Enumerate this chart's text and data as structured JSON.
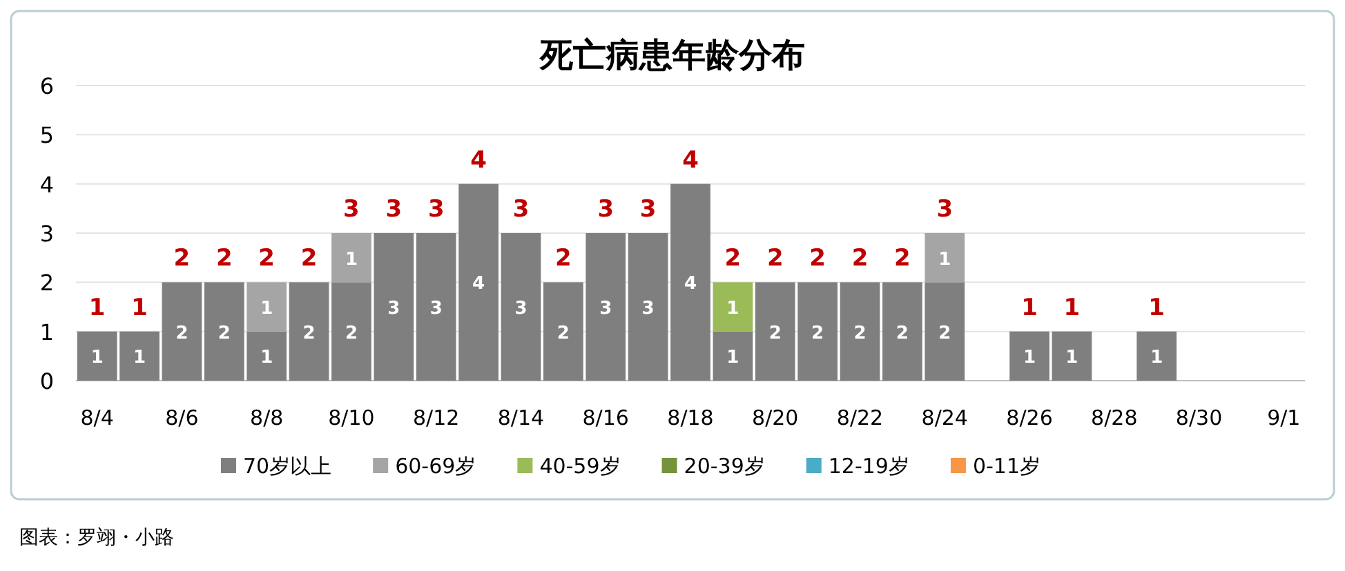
{
  "chart_data": {
    "type": "bar",
    "stacked": true,
    "title": "死亡病患年龄分布",
    "categories": [
      "8/4",
      null,
      "8/6",
      null,
      "8/8",
      null,
      "8/10",
      null,
      "8/12",
      null,
      "8/14",
      null,
      "8/16",
      null,
      "8/18",
      null,
      "8/20",
      null,
      "8/22",
      null,
      "8/24",
      null,
      "8/26",
      null,
      "8/28",
      null,
      "8/30",
      null,
      "9/1"
    ],
    "series": [
      {
        "name": "70岁以上",
        "color": "#7f7f7f",
        "values": [
          1,
          1,
          2,
          2,
          1,
          2,
          2,
          3,
          3,
          4,
          3,
          2,
          3,
          3,
          4,
          1,
          2,
          2,
          2,
          2,
          2,
          0,
          1,
          1,
          0,
          1,
          0,
          0,
          0
        ],
        "value_labels": [
          "1",
          "1",
          "2",
          "2",
          "1",
          "2",
          "2",
          "3",
          "3",
          "4",
          "3",
          "2",
          "3",
          "3",
          "4",
          "1",
          "2",
          "2",
          "2",
          "2",
          "2",
          null,
          "1",
          "1",
          null,
          "1",
          null,
          null,
          null
        ]
      },
      {
        "name": "60-69岁",
        "color": "#a5a5a5",
        "values": [
          0,
          0,
          0,
          0,
          1,
          0,
          1,
          0,
          0,
          0,
          0,
          0,
          0,
          0,
          0,
          0,
          0,
          0,
          0,
          0,
          1,
          0,
          0,
          0,
          0,
          0,
          0,
          0,
          0
        ],
        "value_labels": [
          null,
          null,
          null,
          null,
          "1",
          null,
          "1",
          null,
          null,
          null,
          null,
          null,
          null,
          null,
          null,
          null,
          null,
          null,
          null,
          null,
          "1",
          null,
          null,
          null,
          null,
          null,
          null,
          null,
          null
        ]
      },
      {
        "name": "40-59岁",
        "color": "#9bbb59",
        "values": [
          0,
          0,
          0,
          0,
          0,
          0,
          0,
          0,
          0,
          0,
          0,
          0,
          0,
          0,
          0,
          1,
          0,
          0,
          0,
          0,
          0,
          0,
          0,
          0,
          0,
          0,
          0,
          0,
          0
        ],
        "value_labels": [
          null,
          null,
          null,
          null,
          null,
          null,
          null,
          null,
          null,
          null,
          null,
          null,
          null,
          null,
          null,
          "1",
          null,
          null,
          null,
          null,
          null,
          null,
          null,
          null,
          null,
          null,
          null,
          null,
          null
        ]
      },
      {
        "name": "20-39岁",
        "color": "#76923c",
        "values": [
          0,
          0,
          0,
          0,
          0,
          0,
          0,
          0,
          0,
          0,
          0,
          0,
          0,
          0,
          0,
          0,
          0,
          0,
          0,
          0,
          0,
          0,
          0,
          0,
          0,
          0,
          0,
          0,
          0
        ]
      },
      {
        "name": "12-19岁",
        "color": "#4bacc6",
        "values": [
          0,
          0,
          0,
          0,
          0,
          0,
          0,
          0,
          0,
          0,
          0,
          0,
          0,
          0,
          0,
          0,
          0,
          0,
          0,
          0,
          0,
          0,
          0,
          0,
          0,
          0,
          0,
          0,
          0
        ]
      },
      {
        "name": "0-11岁",
        "color": "#f79646",
        "values": [
          0,
          0,
          0,
          0,
          0,
          0,
          0,
          0,
          0,
          0,
          0,
          0,
          0,
          0,
          0,
          0,
          0,
          0,
          0,
          0,
          0,
          0,
          0,
          0,
          0,
          0,
          0,
          0,
          0
        ]
      }
    ],
    "totals": [
      "1",
      "1",
      "2",
      "2",
      "2",
      "2",
      "3",
      "3",
      "3",
      "4",
      "3",
      "2",
      "3",
      "3",
      "4",
      "2",
      "2",
      "2",
      "2",
      "2",
      "3",
      null,
      "1",
      "1",
      null,
      "1",
      null,
      null,
      null
    ],
    "ylim": [
      0,
      6
    ],
    "yticks": [
      0,
      1,
      2,
      3,
      4,
      5,
      6
    ],
    "grid": "y",
    "legend": "bottom",
    "annotations": [
      "图表：罗翊・小路"
    ]
  }
}
